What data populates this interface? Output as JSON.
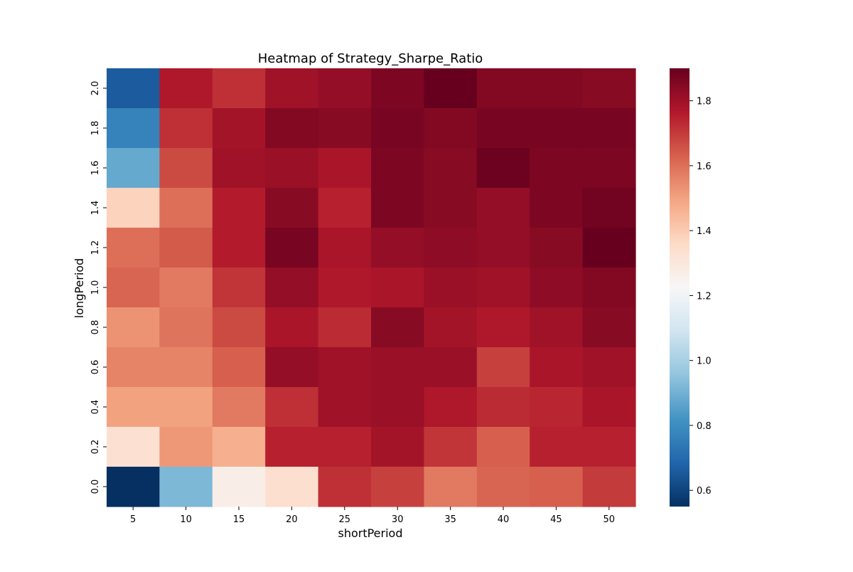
{
  "chart_data": {
    "type": "heatmap",
    "title": "Heatmap of Strategy_Sharpe_Ratio",
    "xlabel": "shortPeriod",
    "ylabel": "longPeriod",
    "x_categories": [
      "5",
      "10",
      "15",
      "20",
      "25",
      "30",
      "35",
      "40",
      "45",
      "50"
    ],
    "y_categories": [
      "2.0",
      "1.8",
      "1.6",
      "1.4",
      "1.2",
      "1.0",
      "0.8",
      "0.6",
      "0.4",
      "0.2",
      "0.0"
    ],
    "values": [
      [
        0.66,
        1.77,
        1.72,
        1.8,
        1.82,
        1.86,
        1.9,
        1.85,
        1.85,
        1.84
      ],
      [
        0.77,
        1.72,
        1.79,
        1.85,
        1.84,
        1.87,
        1.85,
        1.87,
        1.87,
        1.87
      ],
      [
        0.88,
        1.67,
        1.8,
        1.81,
        1.78,
        1.86,
        1.84,
        1.89,
        1.86,
        1.86
      ],
      [
        1.38,
        1.6,
        1.76,
        1.84,
        1.75,
        1.86,
        1.84,
        1.82,
        1.86,
        1.88
      ],
      [
        1.6,
        1.64,
        1.76,
        1.87,
        1.78,
        1.82,
        1.83,
        1.82,
        1.84,
        1.9
      ],
      [
        1.62,
        1.58,
        1.71,
        1.82,
        1.77,
        1.78,
        1.81,
        1.8,
        1.83,
        1.85
      ],
      [
        1.53,
        1.59,
        1.67,
        1.78,
        1.73,
        1.84,
        1.79,
        1.77,
        1.8,
        1.84
      ],
      [
        1.56,
        1.56,
        1.63,
        1.82,
        1.8,
        1.81,
        1.81,
        1.69,
        1.78,
        1.8
      ],
      [
        1.5,
        1.5,
        1.58,
        1.72,
        1.8,
        1.81,
        1.77,
        1.73,
        1.74,
        1.78
      ],
      [
        1.33,
        1.52,
        1.47,
        1.75,
        1.75,
        1.79,
        1.71,
        1.63,
        1.75,
        1.75
      ],
      [
        0.55,
        0.92,
        1.27,
        1.34,
        1.72,
        1.69,
        1.58,
        1.62,
        1.63,
        1.7
      ]
    ],
    "vmin": 0.55,
    "vmax": 1.9,
    "colormap": "RdBu_r",
    "colorbar_ticks": [
      0.6,
      0.8,
      1.0,
      1.2,
      1.4,
      1.6,
      1.8
    ],
    "colorbar_tick_labels": [
      "0.6",
      "0.8",
      "1.0",
      "1.2",
      "1.4",
      "1.6",
      "1.8"
    ]
  }
}
